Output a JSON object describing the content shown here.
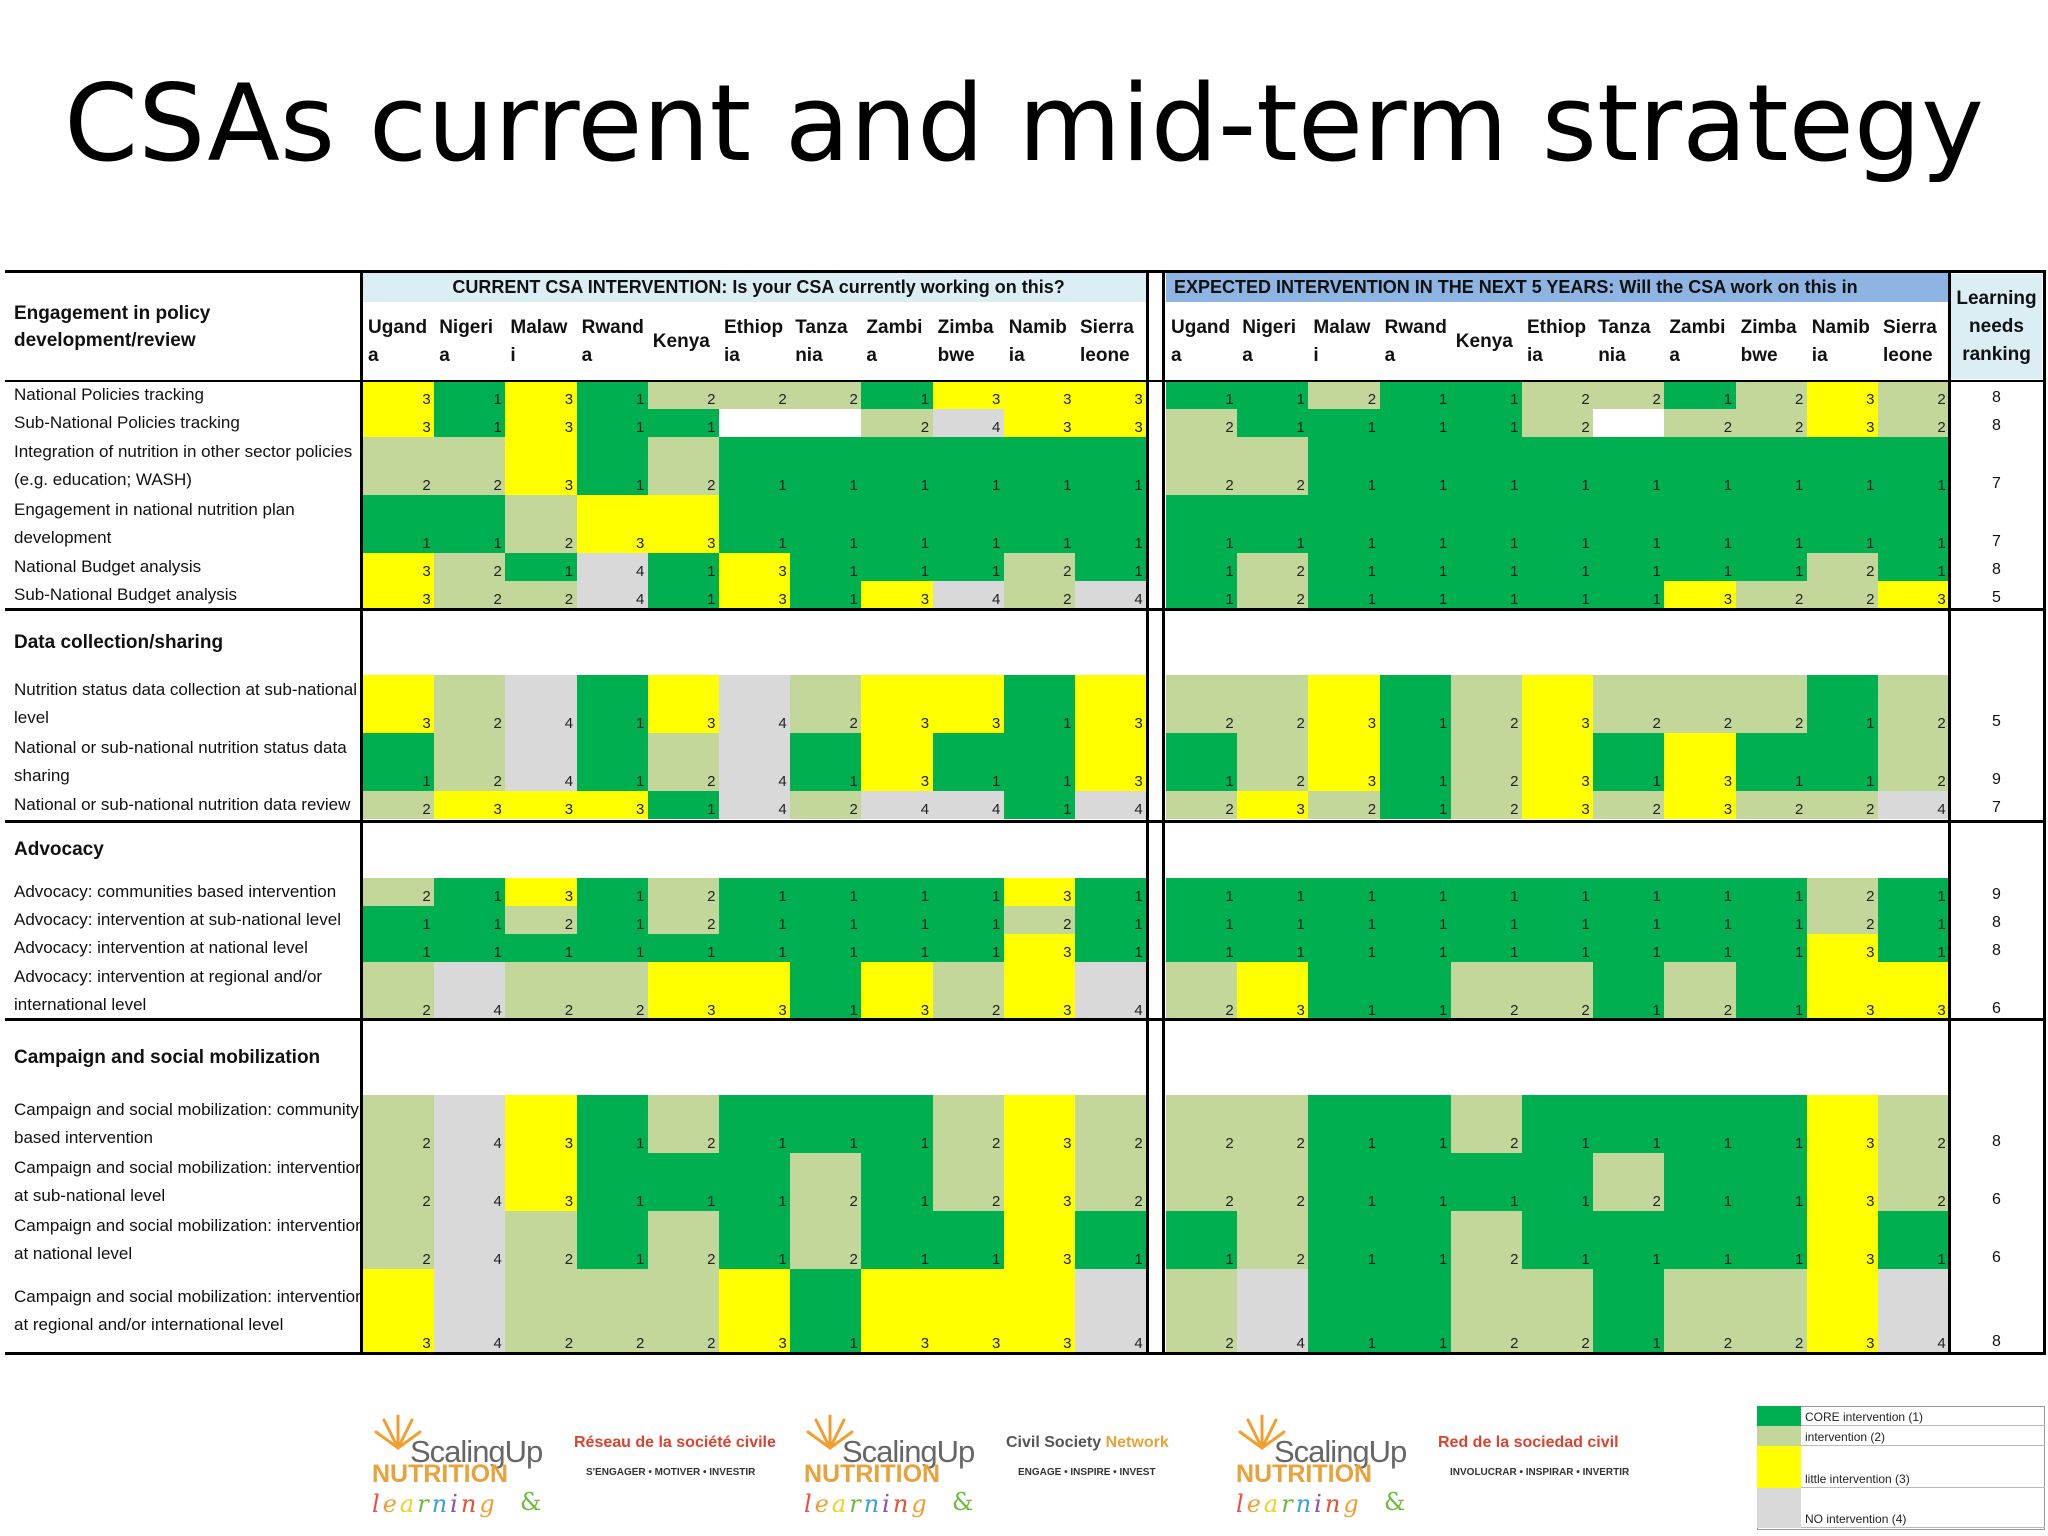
{
  "title": "CSAs current and mid-term strategy",
  "colors": {
    "core": "#00b050",
    "intervention": "#c4d79b",
    "little": "#ffff00",
    "none": "#d9d9d9",
    "blank": "#ffffff",
    "current_header_bg": "#daeef3",
    "expected_header_bg": "#8db4e2"
  },
  "table": {
    "row_header_title": "Engagement in policy development/review",
    "current_header": "CURRENT CSA INTERVENTION: Is your CSA currently working on this?",
    "expected_header": "EXPECTED INTERVENTION IN THE NEXT 5 YEARS: Will the CSA work on this in",
    "ranking_header": "Learning needs ranking",
    "countries": [
      [
        "Ugand",
        "a"
      ],
      [
        "Nigeri",
        "a"
      ],
      [
        "Malaw",
        "i"
      ],
      [
        "Rwand",
        "a"
      ],
      [
        "Kenya",
        ""
      ],
      [
        "Ethiop",
        "ia"
      ],
      [
        "Tanza",
        "nia"
      ],
      [
        "Zambi",
        "a"
      ],
      [
        "Zimba",
        "bwe"
      ],
      [
        "Namib",
        "ia"
      ],
      [
        "Sierra",
        "leone"
      ]
    ],
    "sections": [
      {
        "title": "",
        "rows": [
          {
            "label": [
              "National Policies tracking"
            ],
            "current": [
              3,
              1,
              3,
              1,
              2,
              2,
              2,
              1,
              3,
              3,
              3
            ],
            "expected": [
              1,
              1,
              2,
              1,
              1,
              2,
              2,
              1,
              2,
              3,
              2
            ],
            "rank": "8"
          },
          {
            "label": [
              "Sub-National Policies tracking"
            ],
            "current": [
              3,
              1,
              3,
              1,
              1,
              null,
              null,
              2,
              4,
              3,
              3
            ],
            "expected": [
              2,
              1,
              1,
              1,
              1,
              2,
              null,
              2,
              2,
              3,
              2
            ],
            "rank": "8"
          },
          {
            "label": [
              "Integration of nutrition in other sector policies",
              "(e.g. education; WASH)"
            ],
            "current": [
              2,
              2,
              3,
              1,
              2,
              1,
              1,
              1,
              1,
              1,
              1
            ],
            "expected": [
              2,
              2,
              1,
              1,
              1,
              1,
              1,
              1,
              1,
              1,
              1
            ],
            "rank": "7"
          },
          {
            "label": [
              "Engagement in national nutrition plan",
              "development"
            ],
            "current": [
              1,
              1,
              2,
              3,
              3,
              1,
              1,
              1,
              1,
              1,
              1
            ],
            "expected": [
              1,
              1,
              1,
              1,
              1,
              1,
              1,
              1,
              1,
              1,
              1
            ],
            "rank": "7"
          },
          {
            "label": [
              "National Budget analysis"
            ],
            "current": [
              3,
              2,
              1,
              4,
              1,
              3,
              1,
              1,
              1,
              2,
              1
            ],
            "expected": [
              1,
              2,
              1,
              1,
              1,
              1,
              1,
              1,
              1,
              2,
              1
            ],
            "rank": "8"
          },
          {
            "label": [
              "Sub-National Budget analysis"
            ],
            "current": [
              3,
              2,
              2,
              4,
              1,
              3,
              1,
              3,
              4,
              2,
              4
            ],
            "expected": [
              1,
              2,
              1,
              1,
              1,
              1,
              1,
              3,
              2,
              2,
              3
            ],
            "rank": "5"
          }
        ]
      },
      {
        "title": "Data collection/sharing",
        "rows": [
          {
            "label": [
              "Nutrition status data collection at sub-national",
              "level"
            ],
            "current": [
              3,
              2,
              4,
              1,
              3,
              4,
              2,
              3,
              3,
              1,
              3
            ],
            "expected": [
              2,
              2,
              3,
              1,
              2,
              3,
              2,
              2,
              2,
              1,
              2
            ],
            "rank": "5"
          },
          {
            "label": [
              "National or sub-national nutrition status data",
              "sharing"
            ],
            "current": [
              1,
              2,
              4,
              1,
              2,
              4,
              1,
              3,
              1,
              1,
              3
            ],
            "expected": [
              1,
              2,
              3,
              1,
              2,
              3,
              1,
              3,
              1,
              1,
              2
            ],
            "rank": "9"
          },
          {
            "label": [
              "National or sub-national nutrition data review"
            ],
            "current": [
              2,
              3,
              3,
              3,
              1,
              4,
              2,
              4,
              4,
              1,
              4
            ],
            "expected": [
              2,
              3,
              2,
              1,
              2,
              3,
              2,
              3,
              2,
              2,
              4
            ],
            "rank": "7"
          }
        ]
      },
      {
        "title": "Advocacy",
        "rows": [
          {
            "label": [
              "Advocacy: communities based intervention"
            ],
            "current": [
              2,
              1,
              3,
              1,
              2,
              1,
              1,
              1,
              1,
              3,
              1
            ],
            "expected": [
              1,
              1,
              1,
              1,
              1,
              1,
              1,
              1,
              1,
              2,
              1
            ],
            "rank": "9"
          },
          {
            "label": [
              "Advocacy: intervention at sub-national level"
            ],
            "current": [
              1,
              1,
              2,
              1,
              2,
              1,
              1,
              1,
              1,
              2,
              1
            ],
            "expected": [
              1,
              1,
              1,
              1,
              1,
              1,
              1,
              1,
              1,
              2,
              1
            ],
            "rank": "8"
          },
          {
            "label": [
              "Advocacy: intervention at national level"
            ],
            "current": [
              1,
              1,
              1,
              1,
              1,
              1,
              1,
              1,
              1,
              3,
              1
            ],
            "expected": [
              1,
              1,
              1,
              1,
              1,
              1,
              1,
              1,
              1,
              3,
              1
            ],
            "rank": "8"
          },
          {
            "label": [
              "Advocacy: intervention at regional and/or",
              "international level"
            ],
            "current": [
              2,
              4,
              2,
              2,
              3,
              3,
              1,
              3,
              2,
              3,
              4
            ],
            "expected": [
              2,
              3,
              1,
              1,
              2,
              2,
              1,
              2,
              1,
              3,
              3
            ],
            "rank": "6"
          }
        ]
      },
      {
        "title": "Campaign and social mobilization",
        "rows": [
          {
            "label": [
              "Campaign and social mobilization: community",
              "based intervention"
            ],
            "current": [
              2,
              4,
              3,
              1,
              2,
              1,
              1,
              1,
              2,
              3,
              2
            ],
            "expected": [
              2,
              2,
              1,
              1,
              2,
              1,
              1,
              1,
              1,
              3,
              2
            ],
            "rank": "8"
          },
          {
            "label": [
              "Campaign and social mobilization: intervention",
              "at sub-national level"
            ],
            "current": [
              2,
              4,
              3,
              1,
              1,
              1,
              2,
              1,
              2,
              3,
              2
            ],
            "expected": [
              2,
              2,
              1,
              1,
              1,
              1,
              2,
              1,
              1,
              3,
              2
            ],
            "rank": "6"
          },
          {
            "label": [
              "Campaign and social mobilization: intervention",
              "at national level"
            ],
            "current": [
              2,
              4,
              2,
              1,
              2,
              1,
              2,
              1,
              1,
              3,
              1
            ],
            "expected": [
              1,
              2,
              1,
              1,
              2,
              1,
              1,
              1,
              1,
              3,
              1
            ],
            "rank": "6"
          },
          {
            "label": [
              "Campaign and social mobilization: intervention",
              "at regional and/or international level"
            ],
            "current": [
              3,
              4,
              2,
              2,
              2,
              3,
              1,
              3,
              3,
              3,
              4
            ],
            "expected": [
              2,
              4,
              1,
              1,
              2,
              2,
              1,
              2,
              2,
              3,
              4
            ],
            "rank": "8"
          }
        ]
      }
    ]
  },
  "legend": [
    {
      "label": "CORE intervention (1)",
      "color": "#00b050"
    },
    {
      "label": "intervention (2)",
      "color": "#c4d79b"
    },
    {
      "label": "little intervention (3)",
      "color": "#ffff00"
    },
    {
      "label": "NO intervention (4)",
      "color": "#d9d9d9"
    }
  ],
  "logos": [
    {
      "brand": "ScalingUp",
      "brand2": "NUTRITION",
      "learning": "learning",
      "title_a": "Réseau",
      "title_b": " de la société civile",
      "tagline": "S'ENGAGER • MOTIVER • INVESTIR"
    },
    {
      "brand": "ScalingUp",
      "brand2": "NUTRITION",
      "learning": "learning",
      "title_a": "Civil Society",
      "title_b": " Network",
      "tagline": "ENGAGE • INSPIRE • INVEST"
    },
    {
      "brand": "ScalingUp",
      "brand2": "NUTRITION",
      "learning": "learning",
      "title_a": "Red",
      "title_b": " de la sociedad civil",
      "tagline": "INVOLUCRAR • INSPIRAR • INVERTIR"
    }
  ],
  "logo_separator": "&"
}
